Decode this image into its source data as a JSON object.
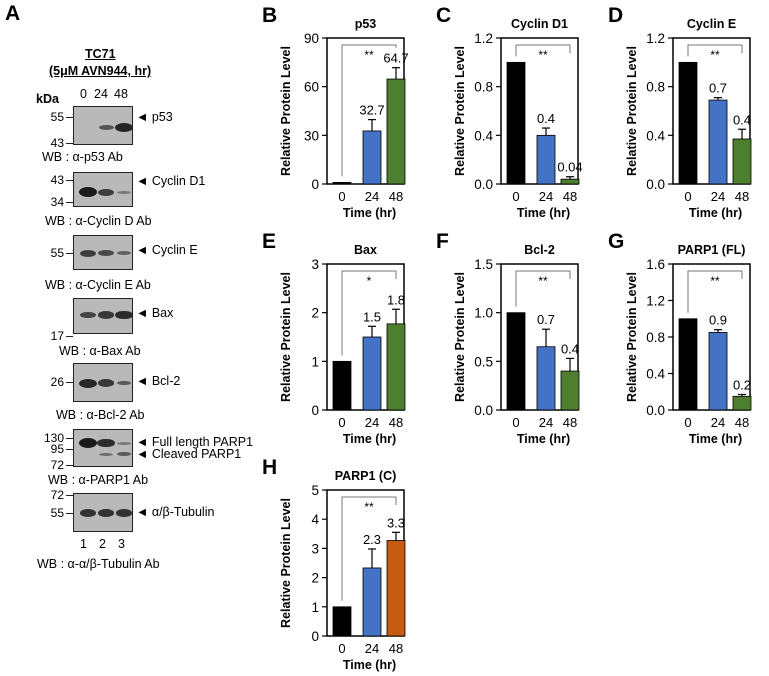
{
  "panel_a": {
    "label": "A",
    "cell_line": "TC71",
    "treatment": "(5μM AVN944, hr)",
    "kda_label": "kDa",
    "lanes": [
      "0",
      "24",
      "48"
    ],
    "lane_numbers": [
      "1",
      "2",
      "3"
    ],
    "blots": [
      {
        "markers": [
          "55",
          "43"
        ],
        "targets": [
          "◄ p53"
        ],
        "wb": "WB : α-p53 Ab"
      },
      {
        "markers": [
          "43",
          "34"
        ],
        "targets": [
          "◄ Cyclin D1"
        ],
        "wb": "WB : α-Cyclin D Ab"
      },
      {
        "markers": [
          "55"
        ],
        "targets": [
          "◄ Cyclin E"
        ],
        "wb": "WB : α-Cyclin E Ab"
      },
      {
        "markers": [
          "17"
        ],
        "targets": [
          "◄ Bax"
        ],
        "wb": "WB : α-Bax Ab"
      },
      {
        "markers": [
          "26"
        ],
        "targets": [
          "◄ Bcl-2"
        ],
        "wb": "WB : α-Bcl-2 Ab"
      },
      {
        "markers": [
          "130",
          "95",
          "72"
        ],
        "targets": [
          "◄ Full length PARP1",
          "◄ Cleaved PARP1"
        ],
        "wb": "WB : α-PARP1 Ab"
      },
      {
        "markers": [
          "72",
          "55"
        ],
        "targets": [
          "◄ α/β-Tubulin"
        ],
        "wb": "WB : α-α/β-Tubulin Ab"
      }
    ]
  },
  "chart_data": [
    {
      "panel": "B",
      "type": "bar",
      "title": "p53",
      "xlabel": "Time (hr)",
      "ylabel": "Relative Protein Level",
      "categories": [
        "0",
        "24",
        "48"
      ],
      "values": [
        1,
        32.7,
        64.7
      ],
      "errors": [
        0,
        7,
        7
      ],
      "data_labels": [
        "",
        "32.7",
        "64.7"
      ],
      "ylim": [
        0,
        90
      ],
      "yticks": [
        "0",
        "30",
        "60",
        "90"
      ],
      "colors": [
        "#000000",
        "#4472C4",
        "#4E7F2F"
      ],
      "significance": "**"
    },
    {
      "panel": "C",
      "type": "bar",
      "title": "Cyclin D1",
      "xlabel": "Time (hr)",
      "ylabel": "Relative Protein Level",
      "categories": [
        "0",
        "24",
        "48"
      ],
      "values": [
        1,
        0.4,
        0.04
      ],
      "errors": [
        0,
        0.06,
        0.02
      ],
      "data_labels": [
        "",
        "0.4",
        "0.04"
      ],
      "ylim": [
        0,
        1.2
      ],
      "yticks": [
        "0.0",
        "0.4",
        "0.8",
        "1.2"
      ],
      "colors": [
        "#000000",
        "#4472C4",
        "#4E7F2F"
      ],
      "significance": "**"
    },
    {
      "panel": "D",
      "type": "bar",
      "title": "Cyclin E",
      "xlabel": "Time (hr)",
      "ylabel": "Relative Protein Level",
      "categories": [
        "0",
        "24",
        "48"
      ],
      "values": [
        1,
        0.69,
        0.37
      ],
      "errors": [
        0,
        0.02,
        0.08
      ],
      "data_labels": [
        "",
        "0.7",
        "0.4"
      ],
      "ylim": [
        0,
        1.2
      ],
      "yticks": [
        "0.0",
        "0.4",
        "0.8",
        "1.2"
      ],
      "colors": [
        "#000000",
        "#4472C4",
        "#4E7F2F"
      ],
      "significance": "**"
    },
    {
      "panel": "E",
      "type": "bar",
      "title": "Bax",
      "xlabel": "Time (hr)",
      "ylabel": "Relative Protein Level",
      "categories": [
        "0",
        "24",
        "48"
      ],
      "values": [
        1,
        1.5,
        1.77
      ],
      "errors": [
        0,
        0.22,
        0.3
      ],
      "data_labels": [
        "",
        "1.5",
        "1.8"
      ],
      "ylim": [
        0,
        3
      ],
      "yticks": [
        "0",
        "1",
        "2",
        "3"
      ],
      "colors": [
        "#000000",
        "#4472C4",
        "#4E7F2F"
      ],
      "significance": "*"
    },
    {
      "panel": "F",
      "type": "bar",
      "title": "Bcl-2",
      "xlabel": "Time (hr)",
      "ylabel": "Relative Protein Level",
      "categories": [
        "0",
        "24",
        "48"
      ],
      "values": [
        1,
        0.65,
        0.4
      ],
      "errors": [
        0,
        0.18,
        0.13
      ],
      "data_labels": [
        "",
        "0.7",
        "0.4"
      ],
      "ylim": [
        0,
        1.5
      ],
      "yticks": [
        "0.0",
        "0.5",
        "1.0",
        "1.5"
      ],
      "colors": [
        "#000000",
        "#4472C4",
        "#4E7F2F"
      ],
      "significance": "**"
    },
    {
      "panel": "G",
      "type": "bar",
      "title": "PARP1 (FL)",
      "xlabel": "Time (hr)",
      "ylabel": "Relative Protein Level",
      "categories": [
        "0",
        "24",
        "48"
      ],
      "values": [
        1,
        0.85,
        0.15
      ],
      "errors": [
        0,
        0.03,
        0.02
      ],
      "data_labels": [
        "",
        "0.9",
        "0.2"
      ],
      "ylim": [
        0,
        1.6
      ],
      "yticks": [
        "0.0",
        "0.4",
        "0.8",
        "1.2",
        "1.6"
      ],
      "colors": [
        "#000000",
        "#4472C4",
        "#4E7F2F"
      ],
      "significance": "**"
    },
    {
      "panel": "H",
      "type": "bar",
      "title": "PARP1 (C)",
      "xlabel": "Time (hr)",
      "ylabel": "Relative Protein Level",
      "categories": [
        "0",
        "24",
        "48"
      ],
      "values": [
        1,
        2.33,
        3.27
      ],
      "errors": [
        0,
        0.65,
        0.28
      ],
      "data_labels": [
        "",
        "2.3",
        "3.3"
      ],
      "ylim": [
        0,
        5
      ],
      "yticks": [
        "0",
        "1",
        "2",
        "3",
        "4",
        "5"
      ],
      "colors": [
        "#000000",
        "#4472C4",
        "#C55A11"
      ],
      "significance": "**"
    }
  ]
}
